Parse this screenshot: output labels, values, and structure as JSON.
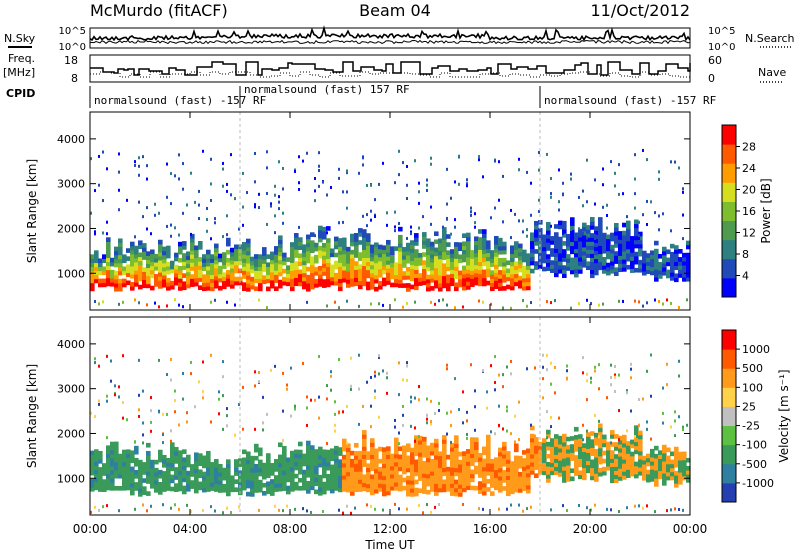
{
  "header": {
    "station": "McMurdo (fitACF)",
    "beam": "Beam 04",
    "date": "11/Oct/2012"
  },
  "side_labels": {
    "nsky": "N.Sky",
    "nsearch": "N.Search",
    "freq": "Freq.",
    "mhz": "[MHz]",
    "nave": "Nave",
    "cpid": "CPID"
  },
  "noise_axis": {
    "left_ticks": [
      "10^5",
      "10^0"
    ],
    "right_ticks": [
      "10^5",
      "10^0"
    ]
  },
  "freq_axis": {
    "left_ticks": [
      "18",
      "8"
    ],
    "right_ticks": [
      "60",
      "0"
    ]
  },
  "cpid_segments": [
    {
      "label": "normalsound (fast) -157 RF",
      "start_h": 0.0
    },
    {
      "label": "normalsound (fast) 157 RF",
      "start_h": 6.0
    },
    {
      "label": "normalsound (fast) -157 RF",
      "start_h": 18.0
    }
  ],
  "chart_data": [
    {
      "type": "heatmap",
      "ylabel": "Slant Range [km]",
      "xlabel": "Time UT",
      "x_range_h": [
        0,
        24
      ],
      "ylim": [
        180,
        4600
      ],
      "x_ticks": [
        "00:00",
        "04:00",
        "08:00",
        "12:00",
        "16:00",
        "20:00",
        "00:00"
      ],
      "y_ticks": [
        1000,
        2000,
        3000,
        4000
      ],
      "colorbar": {
        "label": "Power [dB]",
        "ticks": [
          "28",
          "24",
          "20",
          "16",
          "12",
          "8",
          "4"
        ],
        "colors": [
          "#0000ff",
          "#1f4ab8",
          "#2e7f7f",
          "#4e9a4e",
          "#7dbd2e",
          "#d6df1f",
          "#ff9c00",
          "#ff5a00",
          "#ff0000"
        ]
      }
    },
    {
      "type": "heatmap",
      "ylabel": "Slant Range [km]",
      "xlabel": "Time UT",
      "x_range_h": [
        0,
        24
      ],
      "ylim": [
        180,
        4600
      ],
      "x_ticks": [
        "00:00",
        "04:00",
        "08:00",
        "12:00",
        "16:00",
        "20:00",
        "00:00"
      ],
      "y_ticks": [
        1000,
        2000,
        3000,
        4000
      ],
      "colorbar": {
        "label": "Velocity [m s⁻¹]",
        "ticks": [
          "1000",
          "500",
          "100",
          "25",
          "-25",
          "-100",
          "-500",
          "-1000"
        ],
        "colors": [
          "#2440b0",
          "#2e7fa0",
          "#3a9a5a",
          "#5cc040",
          "#c0c0c0",
          "#ffd24a",
          "#ff9a1a",
          "#ff5a00",
          "#ff0000"
        ]
      }
    }
  ]
}
